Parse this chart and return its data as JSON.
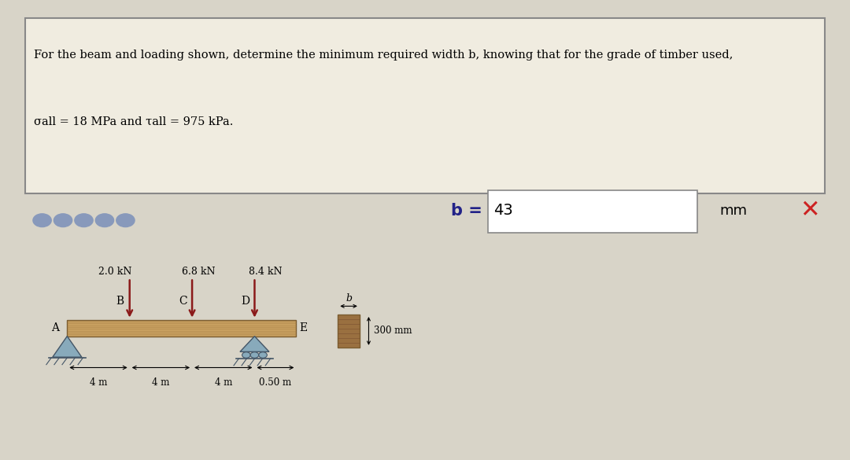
{
  "bg_color": "#f0ece0",
  "outer_bg": "#d8d4c8",
  "question_text_line1": "For the beam and loading shown, determine the minimum required width b, knowing that for the grade of timber used,",
  "question_text_line2": "σall = 18 MPa and τall = 975 kPa.",
  "answer_label": "b = ",
  "answer_value": "43",
  "answer_unit": "mm",
  "beam_bg": "#eae6d8",
  "beam_color": "#c8a878",
  "beam_dark": "#a07848",
  "point_labels": [
    "A",
    "B",
    "C",
    "D",
    "E"
  ],
  "dim_labels": [
    "4 m",
    "4 m",
    "4 m",
    "0.50 m"
  ],
  "section_b_label": "b",
  "section_h_label": "300 mm",
  "arrow_color": "#8b1a1a",
  "x_marker_color": "#cc2222",
  "load_labels": [
    "2.0 kN",
    "6.8 kN",
    "8.4 kN"
  ],
  "dot_color": "#8899bb"
}
